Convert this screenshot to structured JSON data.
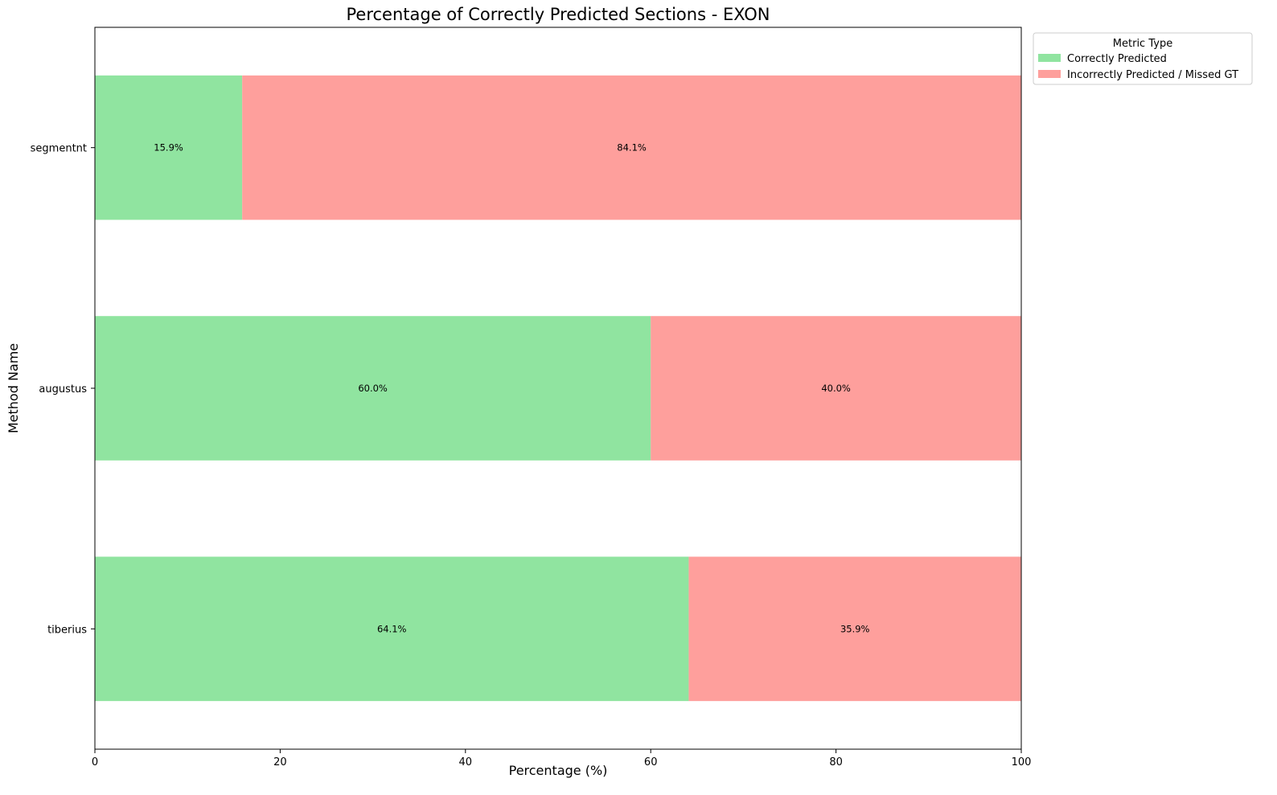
{
  "chart_data": {
    "type": "bar",
    "orientation": "horizontal",
    "stacked": true,
    "title": "Percentage of Correctly Predicted Sections - EXON",
    "xlabel": "Percentage (%)",
    "ylabel": "Method Name",
    "xlim": [
      0,
      100
    ],
    "x_ticks": [
      0,
      20,
      40,
      60,
      80,
      100
    ],
    "categories": [
      "segmentnt",
      "augustus",
      "tiberius"
    ],
    "series": [
      {
        "name": "Correctly Predicted",
        "color": "#90e4a0",
        "values": [
          15.9,
          60.0,
          64.1
        ],
        "labels": [
          "15.9%",
          "60.0%",
          "64.1%"
        ]
      },
      {
        "name": "Incorrectly Predicted / Missed GT",
        "color": "#fe9f9c",
        "values": [
          84.1,
          40.0,
          35.9
        ],
        "labels": [
          "84.1%",
          "40.0%",
          "35.9%"
        ]
      }
    ],
    "legend": {
      "title": "Metric Type",
      "placement": "outside-top-right"
    },
    "grid": false
  }
}
